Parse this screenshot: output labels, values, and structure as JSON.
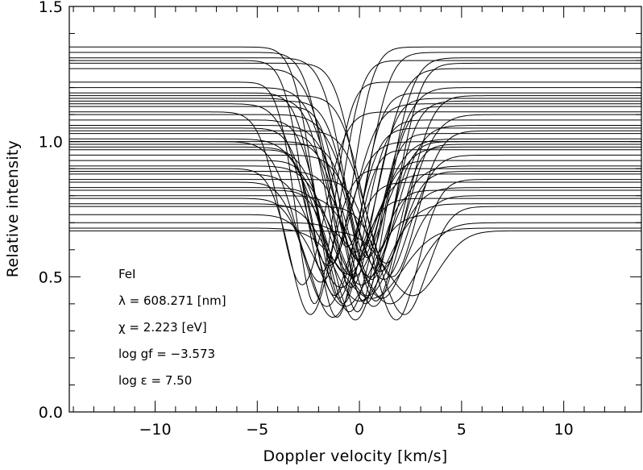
{
  "chart_data": {
    "type": "line",
    "title": "",
    "xlabel": "Doppler velocity [km/s]",
    "ylabel": "Relative intensity",
    "xlim": [
      -14.2,
      13.8
    ],
    "ylim": [
      0.0,
      1.5
    ],
    "xticks": [
      -10,
      -5,
      0,
      5,
      10
    ],
    "xtick_labels": [
      "−10",
      "−5",
      "0",
      "5",
      "10"
    ],
    "yticks": [
      0.0,
      0.5,
      1.0,
      1.5
    ],
    "ytick_labels": [
      "0.0",
      "0.5",
      "1.0",
      "1.5"
    ],
    "x_minor_step": 1,
    "y_minor_step": 0.1,
    "grid": false,
    "line_color": "#000000",
    "annotations": [
      "FeI",
      "λ = 608.271 [nm]",
      "χ =  2.223 [eV]",
      "log gf = −3.573",
      "log ε =  7.50"
    ],
    "profile_shape": "gaussian absorption line",
    "series": [
      {
        "values": {
          "continuum": 1.35,
          "depth": 0.8,
          "center": -1.3,
          "width": 1.4
        }
      },
      {
        "values": {
          "continuum": 1.33,
          "depth": 0.72,
          "center": -0.6,
          "width": 1.5
        }
      },
      {
        "values": {
          "continuum": 1.31,
          "depth": 0.74,
          "center": 0.4,
          "width": 1.6
        }
      },
      {
        "values": {
          "continuum": 1.3,
          "depth": 0.78,
          "center": -1.8,
          "width": 1.35
        }
      },
      {
        "values": {
          "continuum": 1.29,
          "depth": 0.7,
          "center": 0.9,
          "width": 1.5
        }
      },
      {
        "values": {
          "continuum": 1.27,
          "depth": 0.68,
          "center": -0.2,
          "width": 1.7
        }
      },
      {
        "values": {
          "continuum": 1.22,
          "depth": 0.82,
          "center": -2.2,
          "width": 1.25
        }
      },
      {
        "values": {
          "continuum": 1.2,
          "depth": 0.64,
          "center": 0.0,
          "width": 1.8
        }
      },
      {
        "values": {
          "continuum": 1.18,
          "depth": 0.76,
          "center": -1.0,
          "width": 1.45
        }
      },
      {
        "values": {
          "continuum": 1.17,
          "depth": 0.62,
          "center": 1.3,
          "width": 1.6
        }
      },
      {
        "values": {
          "continuum": 1.16,
          "depth": 0.7,
          "center": -0.4,
          "width": 1.5
        }
      },
      {
        "values": {
          "continuum": 1.15,
          "depth": 0.66,
          "center": 0.6,
          "width": 1.55
        }
      },
      {
        "values": {
          "continuum": 1.14,
          "depth": 0.6,
          "center": -1.5,
          "width": 1.7
        }
      },
      {
        "values": {
          "continuum": 1.13,
          "depth": 0.72,
          "center": 0.2,
          "width": 1.4
        }
      },
      {
        "values": {
          "continuum": 1.11,
          "depth": 0.64,
          "center": -2.8,
          "width": 1.5
        }
      },
      {
        "values": {
          "continuum": 1.1,
          "depth": 0.58,
          "center": 1.0,
          "width": 1.9
        }
      },
      {
        "values": {
          "continuum": 1.08,
          "depth": 0.68,
          "center": -0.8,
          "width": 1.45
        }
      },
      {
        "values": {
          "continuum": 1.06,
          "depth": 0.56,
          "center": 0.5,
          "width": 1.75
        }
      },
      {
        "values": {
          "continuum": 1.05,
          "depth": 0.62,
          "center": -1.2,
          "width": 1.5
        }
      },
      {
        "values": {
          "continuum": 1.04,
          "depth": 0.54,
          "center": 1.6,
          "width": 1.65
        }
      },
      {
        "values": {
          "continuum": 1.03,
          "depth": 0.66,
          "center": -0.1,
          "width": 1.35
        }
      },
      {
        "values": {
          "continuum": 1.01,
          "depth": 0.5,
          "center": -0.6,
          "width": 2.0
        }
      },
      {
        "values": {
          "continuum": 1.0,
          "depth": 0.6,
          "center": 0.3,
          "width": 1.5
        }
      },
      {
        "values": {
          "continuum": 1.0,
          "depth": 0.52,
          "center": -1.9,
          "width": 1.7
        }
      },
      {
        "values": {
          "continuum": 0.99,
          "depth": 0.58,
          "center": 0.8,
          "width": 1.45
        }
      },
      {
        "values": {
          "continuum": 0.98,
          "depth": 0.48,
          "center": -0.3,
          "width": 1.85
        }
      },
      {
        "values": {
          "continuum": 0.97,
          "depth": 0.62,
          "center": -1.1,
          "width": 1.3
        }
      },
      {
        "values": {
          "continuum": 0.95,
          "depth": 0.46,
          "center": 1.2,
          "width": 1.7
        }
      },
      {
        "values": {
          "continuum": 0.93,
          "depth": 0.56,
          "center": -0.5,
          "width": 1.5
        }
      },
      {
        "values": {
          "continuum": 0.91,
          "depth": 0.44,
          "center": 0.1,
          "width": 1.9
        }
      },
      {
        "values": {
          "continuum": 0.9,
          "depth": 0.54,
          "center": -2.4,
          "width": 1.4
        }
      },
      {
        "values": {
          "continuum": 0.89,
          "depth": 0.5,
          "center": 0.7,
          "width": 1.6
        }
      },
      {
        "values": {
          "continuum": 0.88,
          "depth": 0.42,
          "center": -0.9,
          "width": 1.75
        }
      },
      {
        "values": {
          "continuum": 0.86,
          "depth": 0.52,
          "center": 1.8,
          "width": 1.5
        }
      },
      {
        "values": {
          "continuum": 0.85,
          "depth": 0.46,
          "center": -1.6,
          "width": 1.55
        }
      },
      {
        "values": {
          "continuum": 0.83,
          "depth": 0.4,
          "center": 0.4,
          "width": 1.8
        }
      },
      {
        "values": {
          "continuum": 0.82,
          "depth": 0.48,
          "center": -0.2,
          "width": 1.45
        }
      },
      {
        "values": {
          "continuum": 0.8,
          "depth": 0.38,
          "center": 1.1,
          "width": 1.7
        }
      },
      {
        "values": {
          "continuum": 0.79,
          "depth": 0.44,
          "center": -1.3,
          "width": 1.6
        }
      },
      {
        "values": {
          "continuum": 0.77,
          "depth": 0.36,
          "center": 0.0,
          "width": 1.9
        }
      },
      {
        "values": {
          "continuum": 0.76,
          "depth": 0.4,
          "center": 2.2,
          "width": 1.55
        }
      },
      {
        "values": {
          "continuum": 0.73,
          "depth": 0.34,
          "center": -0.7,
          "width": 1.75
        }
      },
      {
        "values": {
          "continuum": 0.7,
          "depth": 0.3,
          "center": 1.5,
          "width": 1.85
        }
      },
      {
        "values": {
          "continuum": 0.68,
          "depth": 0.26,
          "center": 0.6,
          "width": 2.1
        }
      },
      {
        "values": {
          "continuum": 0.67,
          "depth": 0.24,
          "center": 2.6,
          "width": 1.8
        }
      }
    ]
  }
}
